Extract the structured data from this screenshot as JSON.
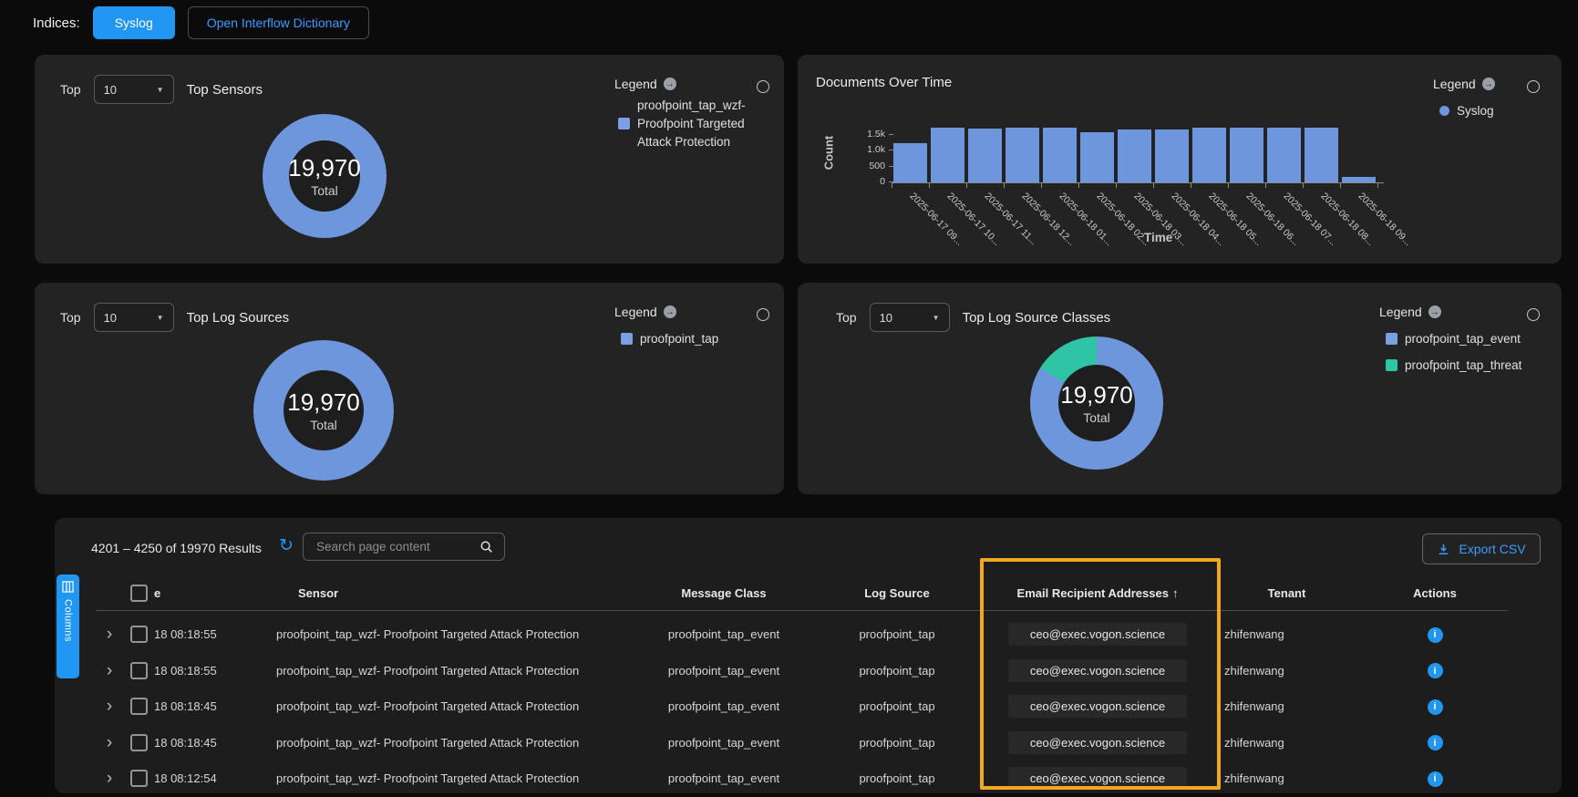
{
  "colors": {
    "accent_blue": "#2196f3",
    "chart_blue": "#6E96DC",
    "teal": "#2EC4A5",
    "highlight_box": "#F0A91D",
    "link_blue": "#3d9aff"
  },
  "icons": {
    "caret": "▼",
    "legend_arrow": "→",
    "chevron": "›",
    "refresh": "↻",
    "info": "i"
  },
  "topbar": {
    "indices_label": "Indices:",
    "syslog_button": "Syslog",
    "dictionary_button": "Open Interflow Dictionary"
  },
  "panels": {
    "top_sensors": {
      "top_label": "Top",
      "top_count": "10",
      "title": "Top Sensors",
      "legend_title": "Legend",
      "legend_item_lines": [
        "proofpoint_tap_wzf-",
        "Proofpoint Targeted",
        "Attack Protection"
      ],
      "total": "19,970",
      "total_label": "Total"
    },
    "documents_over_time": {
      "title": "Documents Over Time",
      "legend_title": "Legend",
      "legend_item": "Syslog",
      "ylabel": "Count",
      "xlabel": "Time"
    },
    "top_log_sources": {
      "top_label": "Top",
      "top_count": "10",
      "title": "Top Log Sources",
      "legend_title": "Legend",
      "legend_item": "proofpoint_tap",
      "total": "19,970",
      "total_label": "Total"
    },
    "top_log_source_classes": {
      "top_label": "Top",
      "top_count": "10",
      "title": "Top Log Source Classes",
      "legend_title": "Legend",
      "legend_items": [
        {
          "label": "proofpoint_tap_event",
          "color": "#6E96DC"
        },
        {
          "label": "proofpoint_tap_threat",
          "color": "#2EC4A5"
        }
      ],
      "total": "19,970",
      "total_label": "Total"
    }
  },
  "chart_data": [
    {
      "id": "top-sensors",
      "type": "pie",
      "title": "Top Sensors",
      "top_n": 10,
      "total": 19970,
      "center_text": "19,970",
      "center_sub": "Total",
      "legend_position": "right",
      "series": [
        {
          "name": "proofpoint_tap_wzf- Proofpoint Targeted Attack Protection",
          "value": 19970,
          "pct": 100,
          "color": "#6E96DC"
        }
      ]
    },
    {
      "id": "documents-over-time",
      "type": "bar",
      "title": "Documents Over Time",
      "series_name": "Syslog",
      "bar_color": "#6E96DC",
      "xlabel": "Time",
      "ylabel": "Count",
      "ylim": [
        0,
        1750
      ],
      "yticks": [
        1500,
        1000,
        500,
        0
      ],
      "ytick_labels": [
        "1.5k",
        "1.0k",
        "500",
        "0"
      ],
      "grid": false,
      "legend_position": "top-right",
      "categories": [
        "2025-06-17 09...",
        "2025-06-17 10...",
        "2025-06-17 11...",
        "2025-06-18 12...",
        "2025-06-18 01...",
        "2025-06-18 02...",
        "2025-06-18 03...",
        "2025-06-18 04...",
        "2025-06-18 05...",
        "2025-06-18 06...",
        "2025-06-18 07...",
        "2025-06-18 08...",
        "2025-06-18 09..."
      ],
      "values": [
        1230,
        1700,
        1670,
        1700,
        1700,
        1560,
        1650,
        1650,
        1700,
        1700,
        1700,
        1700,
        160
      ]
    },
    {
      "id": "top-log-sources",
      "type": "pie",
      "title": "Top Log Sources",
      "top_n": 10,
      "total": 19970,
      "center_text": "19,970",
      "center_sub": "Total",
      "legend_position": "right",
      "series": [
        {
          "name": "proofpoint_tap",
          "value": 19970,
          "pct": 100,
          "color": "#6E96DC"
        }
      ]
    },
    {
      "id": "top-log-source-classes",
      "type": "pie",
      "title": "Top Log Source Classes",
      "top_n": 10,
      "total": 19970,
      "center_text": "19,970",
      "center_sub": "Total",
      "legend_position": "right",
      "note": "slice values estimated from arc angles",
      "series": [
        {
          "name": "proofpoint_tap_event",
          "value": 16750,
          "pct": 84,
          "color": "#6E96DC"
        },
        {
          "name": "proofpoint_tap_threat",
          "value": 3220,
          "pct": 16,
          "color": "#2EC4A5"
        }
      ]
    }
  ],
  "table": {
    "results_text": "4201 – 4250 of 19970 Results",
    "search_placeholder": "Search page content",
    "export_label": "Export CSV",
    "columns_label": "Columns",
    "headers": {
      "date_partial": "e",
      "sensor": "Sensor",
      "message_class": "Message Class",
      "log_source": "Log Source",
      "email": "Email Recipient Addresses",
      "sort_arrow": "↑",
      "tenant": "Tenant",
      "actions": "Actions"
    },
    "sorted_column": "Email Recipient Addresses",
    "sort_direction": "ascending",
    "rows": [
      {
        "time": "18 08:18:55",
        "sensor": "proofpoint_tap_wzf- Proofpoint Targeted Attack Protection",
        "message_class": "proofpoint_tap_event",
        "log_source": "proofpoint_tap",
        "email": "ceo@exec.vogon.science",
        "tenant": "zhifenwang"
      },
      {
        "time": "18 08:18:55",
        "sensor": "proofpoint_tap_wzf- Proofpoint Targeted Attack Protection",
        "message_class": "proofpoint_tap_event",
        "log_source": "proofpoint_tap",
        "email": "ceo@exec.vogon.science",
        "tenant": "zhifenwang"
      },
      {
        "time": "18 08:18:45",
        "sensor": "proofpoint_tap_wzf- Proofpoint Targeted Attack Protection",
        "message_class": "proofpoint_tap_event",
        "log_source": "proofpoint_tap",
        "email": "ceo@exec.vogon.science",
        "tenant": "zhifenwang"
      },
      {
        "time": "18 08:18:45",
        "sensor": "proofpoint_tap_wzf- Proofpoint Targeted Attack Protection",
        "message_class": "proofpoint_tap_event",
        "log_source": "proofpoint_tap",
        "email": "ceo@exec.vogon.science",
        "tenant": "zhifenwang"
      },
      {
        "time": "18 08:12:54",
        "sensor": "proofpoint_tap_wzf- Proofpoint Targeted Attack Protection",
        "message_class": "proofpoint_tap_event",
        "log_source": "proofpoint_tap",
        "email": "ceo@exec.vogon.science",
        "tenant": "zhifenwang"
      }
    ]
  }
}
